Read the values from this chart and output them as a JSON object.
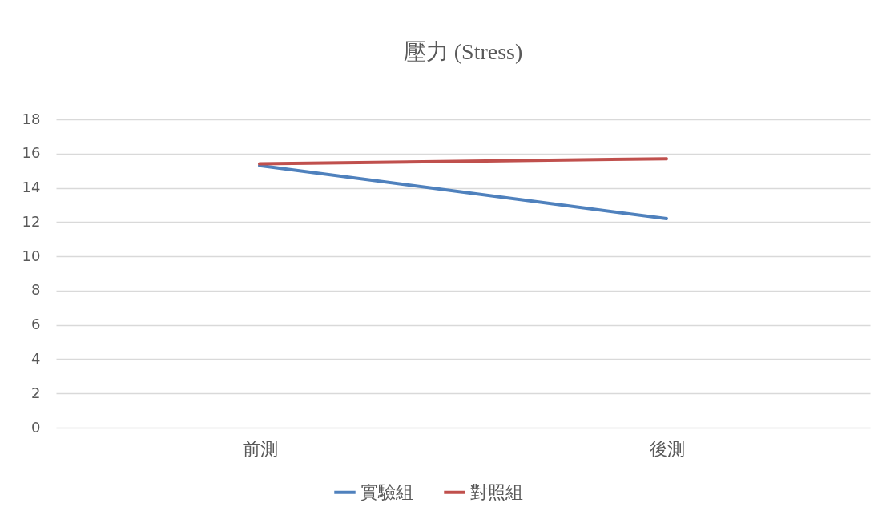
{
  "chart_data": {
    "type": "line",
    "title": "壓力 (Stress)",
    "categories": [
      "前測",
      "後測"
    ],
    "series": [
      {
        "name": "實驗組",
        "color": "#4f81bd",
        "values": [
          15.3,
          12.2
        ]
      },
      {
        "name": "對照組",
        "color": "#c0504d",
        "values": [
          15.4,
          15.7
        ]
      }
    ],
    "ylim": [
      0,
      18
    ],
    "yticks": [
      0,
      2,
      4,
      6,
      8,
      10,
      12,
      14,
      16,
      18
    ],
    "grid": "y",
    "legend": "bottom",
    "marker": "none",
    "line_style": "solid"
  }
}
